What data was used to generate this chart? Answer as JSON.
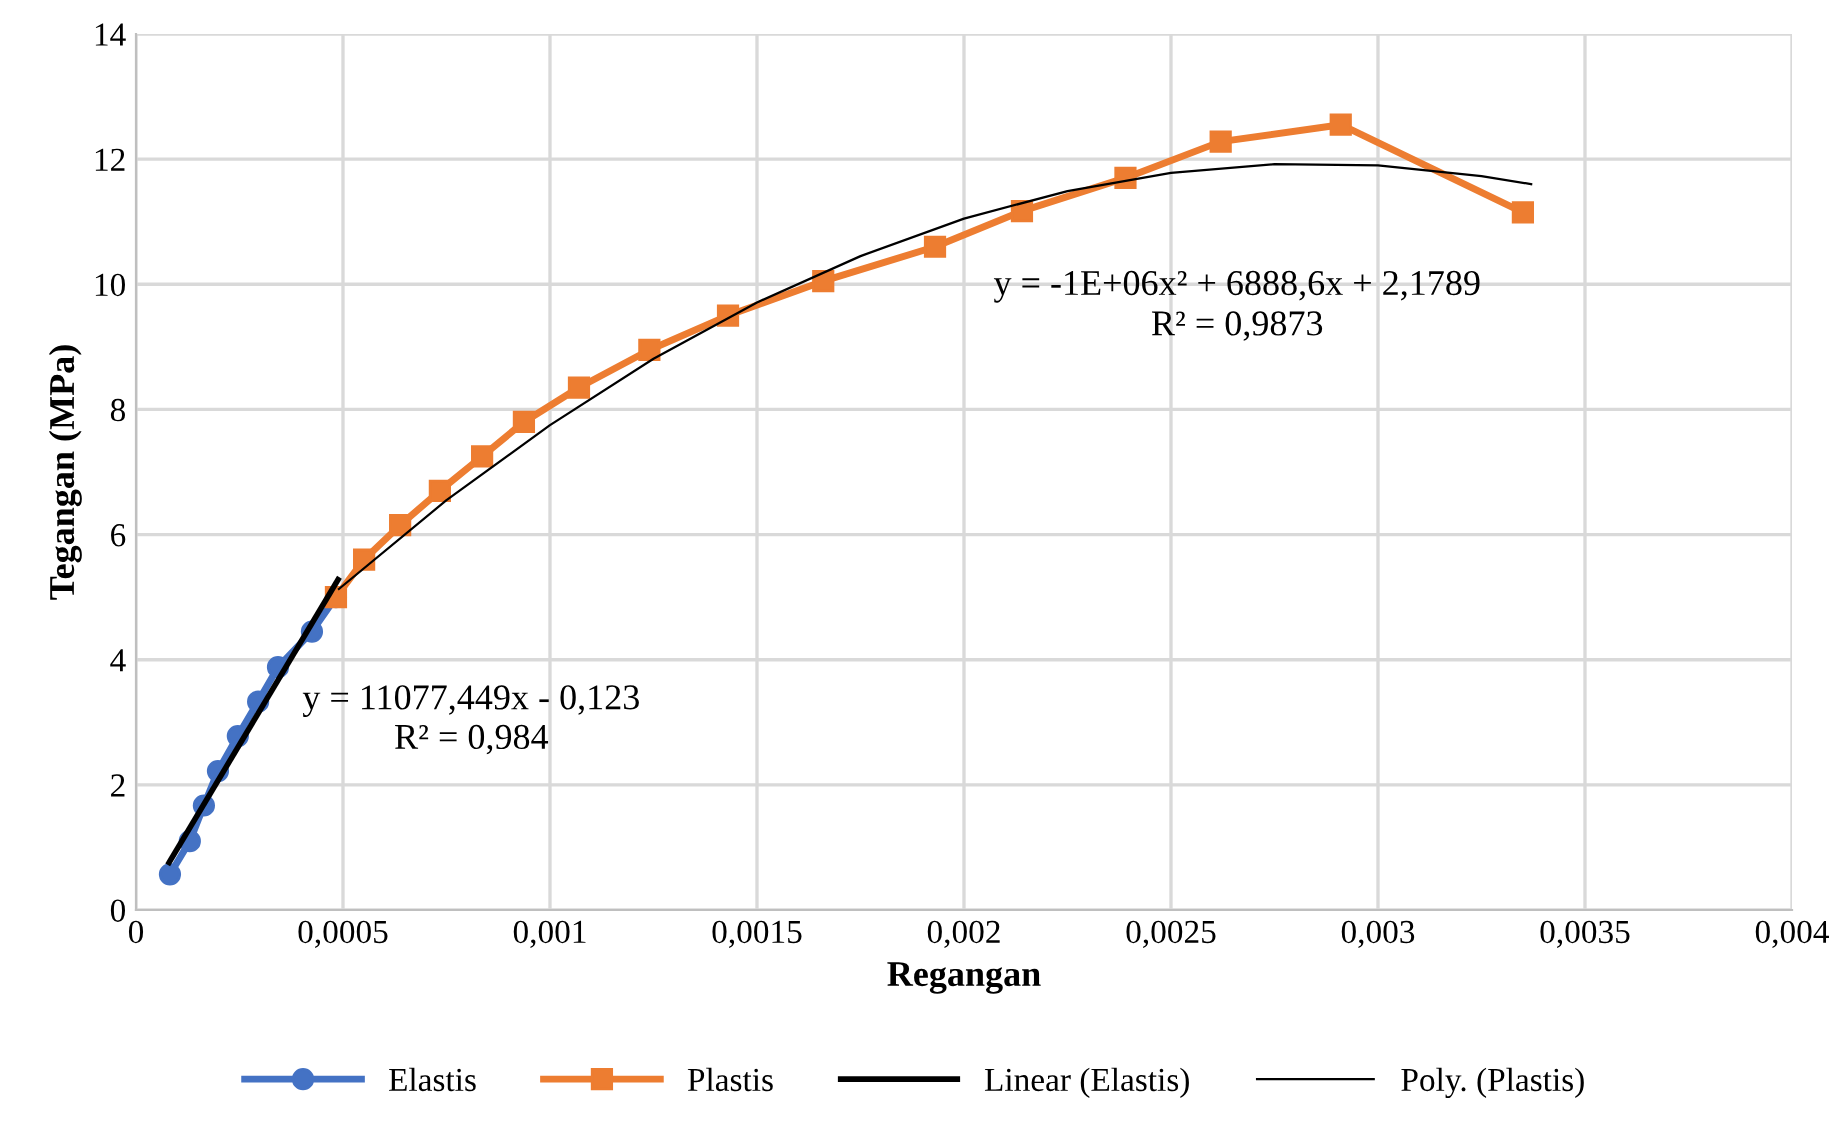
{
  "chart_data": {
    "type": "line",
    "xlabel": "Regangan",
    "ylabel": "Tegangan (MPa)",
    "xlim": [
      0,
      0.004
    ],
    "ylim": [
      0,
      14
    ],
    "xticks": [
      0,
      {
        "value": 0.0005,
        "label": "0,0005"
      },
      {
        "value": 0.001,
        "label": "0,001"
      },
      {
        "value": 0.0015,
        "label": "0,0015"
      },
      {
        "value": 0.002,
        "label": "0,002"
      },
      {
        "value": 0.0025,
        "label": "0,0025"
      },
      {
        "value": 0.003,
        "label": "0,003"
      },
      {
        "value": 0.0035,
        "label": "0,0035"
      },
      {
        "value": 0.004,
        "label": "0,004"
      }
    ],
    "yticks": [
      0,
      2,
      4,
      6,
      8,
      10,
      12,
      14
    ],
    "grid": true,
    "legend": "bottom",
    "series": [
      {
        "name": "Elastis",
        "color": "#4472c4",
        "marker": "circle",
        "x": [
          8.2e-05,
          0.00013,
          0.000164,
          0.000198,
          0.000246,
          0.000295,
          0.000343,
          0.000425,
          0.000483
        ],
        "values": [
          0.57,
          1.1,
          1.67,
          2.22,
          2.78,
          3.33,
          3.88,
          4.45,
          5.0
        ]
      },
      {
        "name": "Plastis",
        "color": "#ed7d31",
        "marker": "square",
        "x": [
          0.000483,
          0.000551,
          0.000638,
          0.000734,
          0.000836,
          0.000937,
          0.00107,
          0.00124,
          0.00143,
          0.00166,
          0.00193,
          0.00214,
          0.00239,
          0.00262,
          0.00291,
          0.00335
        ],
        "values": [
          5.0,
          5.6,
          6.15,
          6.7,
          7.25,
          7.8,
          8.35,
          8.95,
          9.5,
          10.05,
          10.6,
          11.17,
          11.7,
          12.28,
          12.55,
          11.15
        ]
      },
      {
        "name": "Linear (Elastis)",
        "color": "#000000",
        "marker": "none",
        "x": [
          8e-05,
          0.000488
        ],
        "values": [
          0.76,
          5.28
        ]
      },
      {
        "name": "Poly. (Plastis)",
        "color": "#000000",
        "marker": "none",
        "x": [
          0.00049,
          0.00075,
          0.001,
          0.00125,
          0.0015,
          0.00175,
          0.002,
          0.00225,
          0.0025,
          0.00275,
          0.003,
          0.00325,
          0.00337
        ],
        "values": [
          5.13,
          6.55,
          7.75,
          8.81,
          9.71,
          10.45,
          11.05,
          11.49,
          11.78,
          11.92,
          11.9,
          11.73,
          11.6
        ]
      }
    ],
    "annotations": [
      "y = 11077,449x - 0,123",
      "R² = 0,984",
      "y = -1E+06x² + 6888,6x + 2,1789",
      "R² = 0,9873"
    ]
  }
}
